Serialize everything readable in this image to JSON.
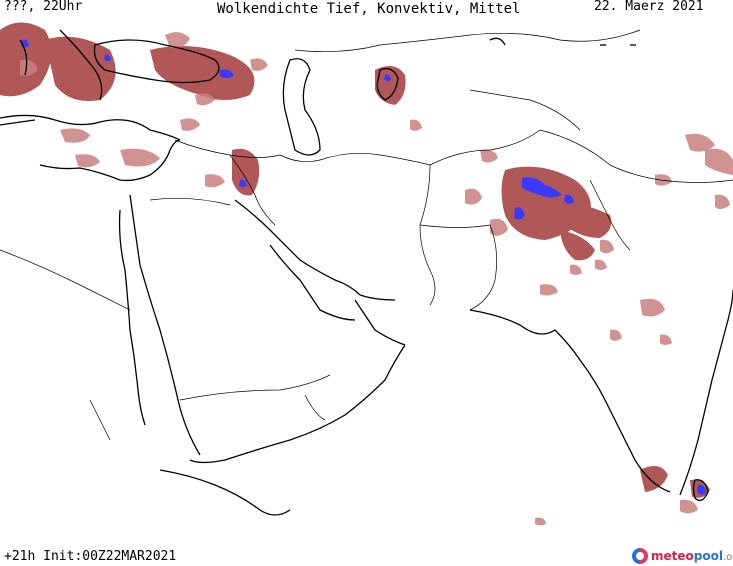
{
  "header": {
    "left": "???, 22Uhr",
    "title": "Wolkendichte  Tief, Konvektiv, Mittel",
    "date": "22. Maerz 2021"
  },
  "footer": {
    "run": "+21h Init:00Z22MAR2021"
  },
  "logo": {
    "part1": "meteo",
    "part2": "pool",
    "part3": ".org"
  },
  "legend_colors": {
    "cloud_dense": "#a84545",
    "cloud_light": "#c97f7f",
    "convective_core": "#3a3aff",
    "coastline": "#000000",
    "borders": "#000000"
  }
}
